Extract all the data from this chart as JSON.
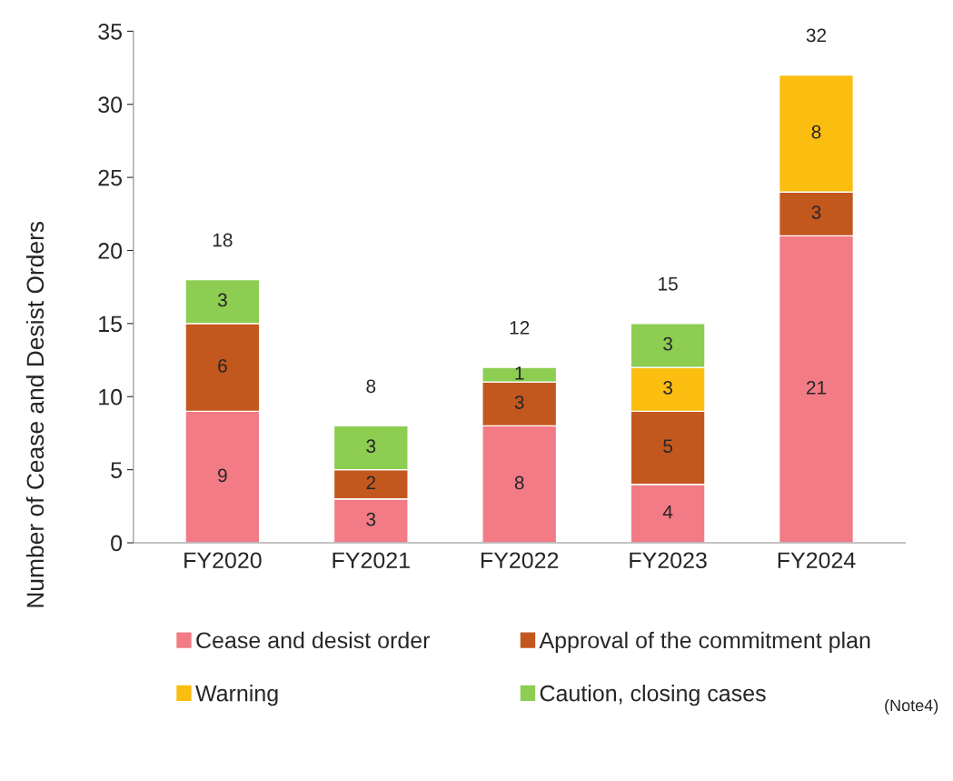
{
  "chart_data": {
    "type": "bar",
    "stacked": true,
    "ylabel": "Number of Cease and Desist Orders",
    "categories": [
      "FY2020",
      "FY2021",
      "FY2022",
      "FY2023",
      "FY2024"
    ],
    "series": [
      {
        "name": "Cease and desist order",
        "color": "#f27b86",
        "values": [
          9,
          3,
          8,
          4,
          21
        ]
      },
      {
        "name": "Approval of the commitment plan",
        "color": "#c3581f",
        "values": [
          6,
          2,
          3,
          5,
          3
        ]
      },
      {
        "name": "Warning",
        "color": "#fbbd10",
        "values": [
          null,
          null,
          null,
          3,
          8
        ]
      },
      {
        "name": "Caution, closing cases",
        "color": "#8ccd52",
        "values": [
          3,
          3,
          1,
          3,
          null
        ]
      }
    ],
    "totals": [
      "18",
      "8",
      "12",
      "15",
      "32"
    ],
    "data_labels": true,
    "ylim": [
      0,
      35
    ],
    "yticks": [
      0,
      5,
      10,
      15,
      20,
      25,
      30,
      35
    ],
    "grid": false,
    "legend": "bottom",
    "annotations": [
      "(Note4)"
    ]
  }
}
